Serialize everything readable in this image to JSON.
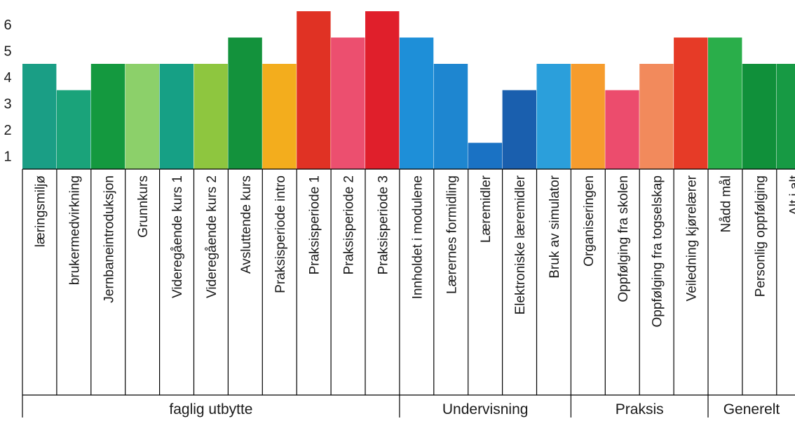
{
  "chart_data": {
    "type": "bar",
    "title": "",
    "xlabel": "",
    "ylabel": "",
    "ylim": [
      0.5,
      6.5
    ],
    "yticks": [
      1,
      2,
      3,
      4,
      5,
      6
    ],
    "grid": false,
    "categories": [
      "læringsmiljø",
      "brukermedvirkning",
      "Jernbaneintroduksjon",
      "Grunnkurs",
      "Videregående kurs 1",
      "Videregående kurs 2",
      "Avsluttende kurs",
      "Praksisperiode intro",
      "Praksisperiode 1",
      "Praksisperiode 2",
      "Praksisperiode 3",
      "Innholdet i modulene",
      "Lærernes formidling",
      "Læremidler",
      "Elektroniske læremidler",
      "Bruk av simulator",
      "Organiseringen",
      "Oppfølging fra skolen",
      "Oppfølging fra togselskap",
      "Veiledning kjørelærer",
      "Nådd mål",
      "Personlig oppfølging",
      "Alt i alt"
    ],
    "values": [
      4.5,
      3.5,
      4.5,
      4.5,
      4.5,
      4.5,
      5.5,
      4.5,
      6.5,
      5.5,
      6.5,
      5.5,
      4.5,
      1.5,
      3.5,
      4.5,
      4.5,
      3.5,
      4.5,
      5.5,
      5.5,
      4.5,
      4.5
    ],
    "colors": [
      "#1a9e85",
      "#1aa37a",
      "#14993f",
      "#8cd06a",
      "#16a085",
      "#8ec63f",
      "#13923c",
      "#f3ad1d",
      "#e03224",
      "#ec4f6f",
      "#e01f2b",
      "#1e8fd8",
      "#1e86d0",
      "#1a72c4",
      "#1a5fae",
      "#2b9fdb",
      "#f69c2d",
      "#ec4c6d",
      "#f28a5c",
      "#e63b27",
      "#2aae4a",
      "#10903a",
      "#179a44"
    ],
    "groups": [
      {
        "label": "faglig utbytte",
        "start": 0,
        "end": 10
      },
      {
        "label": "Undervisning",
        "start": 11,
        "end": 15
      },
      {
        "label": "Praksis",
        "start": 16,
        "end": 19
      },
      {
        "label": "Generelt",
        "start": 20,
        "end": 22
      }
    ]
  }
}
